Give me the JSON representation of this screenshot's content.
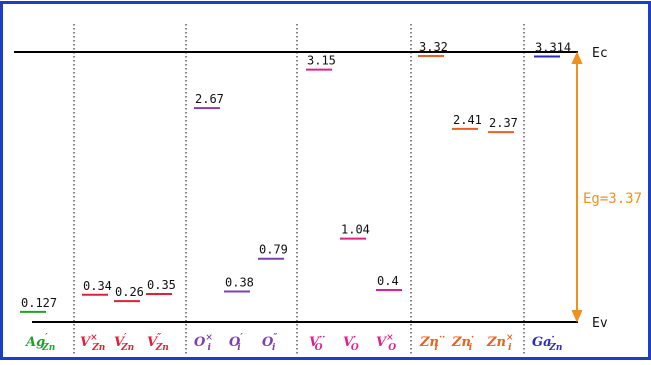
{
  "band_labels": {
    "ec": "Ec",
    "ev": "Ev",
    "eg": "Eg=3.37"
  },
  "colors": {
    "frame": "#1f3ec8",
    "ag": "#22a02a",
    "vzn": "#e0203a",
    "oi": "#7e40ad",
    "vo": "#e0208a",
    "zni": "#ea6020",
    "ga": "#2a2ab8",
    "eg_arrow": "#f2901c"
  },
  "chart_data": {
    "type": "diagram",
    "eg": 3.37,
    "groups": [
      {
        "id": "ag",
        "color_key": "ag",
        "levels": [
          {
            "label": "0.127",
            "value": 0.127,
            "def_base": "Ag",
            "def_sup": "′",
            "def_sub": "Zn"
          }
        ]
      },
      {
        "id": "vzn",
        "color_key": "vzn",
        "levels": [
          {
            "label": "0.34",
            "value": 0.34,
            "def_base": "V",
            "def_sup": "×",
            "def_sub": "Zn"
          },
          {
            "label": "0.26",
            "value": 0.26,
            "def_base": "V",
            "def_sup": "′",
            "def_sub": "Zn"
          },
          {
            "label": "0.35",
            "value": 0.35,
            "def_base": "V",
            "def_sup": "″",
            "def_sub": "Zn"
          }
        ]
      },
      {
        "id": "oi",
        "color_key": "oi",
        "levels": [
          {
            "label": "2.67",
            "value": 2.67,
            "def_base": "O",
            "def_sup": "×",
            "def_sub": "i"
          },
          {
            "label": "0.38",
            "value": 0.38,
            "def_base": "O",
            "def_sup": "′",
            "def_sub": "i"
          },
          {
            "label": "0.79",
            "value": 0.79,
            "def_base": "O",
            "def_sup": "″",
            "def_sub": "i"
          }
        ]
      },
      {
        "id": "vo",
        "color_key": "vo",
        "levels": [
          {
            "label": "3.15",
            "value": 3.15,
            "def_base": "V",
            "def_sup": "··",
            "def_sub": "O"
          },
          {
            "label": "1.04",
            "value": 1.04,
            "def_base": "V",
            "def_sup": "·",
            "def_sub": "O"
          },
          {
            "label": "0.4",
            "value": 0.4,
            "def_base": "V",
            "def_sup": "×",
            "def_sub": "O"
          }
        ]
      },
      {
        "id": "zni",
        "color_key": "zni",
        "levels": [
          {
            "label": "3.32",
            "value": 3.32,
            "def_base": "Zn",
            "def_sup": "··",
            "def_sub": "i"
          },
          {
            "label": "2.41",
            "value": 2.41,
            "def_base": "Zn",
            "def_sup": "·",
            "def_sub": "i"
          },
          {
            "label": "2.37",
            "value": 2.37,
            "def_base": "Zn",
            "def_sup": "×",
            "def_sub": "i"
          }
        ]
      },
      {
        "id": "ga",
        "color_key": "ga",
        "levels": [
          {
            "label": "3.314",
            "value": 3.314,
            "def_base": "Ga",
            "def_sup": "·",
            "def_sub": "Zn"
          }
        ]
      }
    ]
  }
}
